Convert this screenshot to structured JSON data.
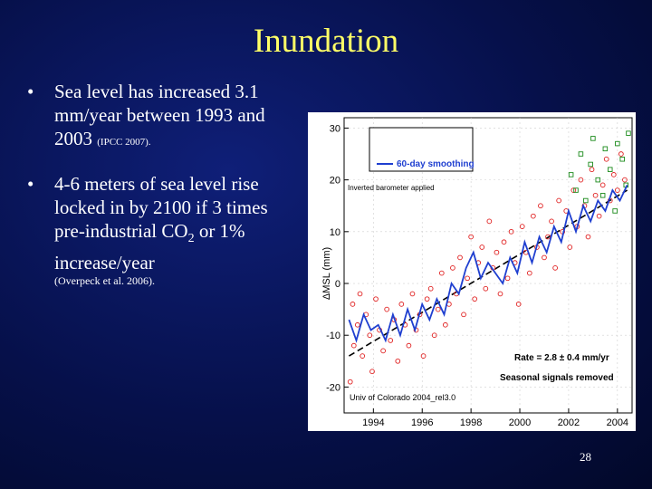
{
  "slide": {
    "title": "Inundation",
    "page_number": "28",
    "bullets": [
      {
        "text": "Sea level has increased 3.1 mm/year between 1993 and 2003",
        "citation": "(IPCC 2007)."
      },
      {
        "text_before": "4-6 meters of sea level rise locked in by 2100 if 3 times pre-industrial CO",
        "subscript": "2",
        "text_after": " or 1% increase/year",
        "citation": "(Overpeck et al. 2006)."
      }
    ]
  },
  "chart_data": {
    "type": "scatter",
    "ylabel": "ΔMSL (mm)",
    "x_ticks": [
      "1994",
      "1996",
      "1998",
      "2000",
      "2002",
      "2004"
    ],
    "y_ticks": [
      "-20",
      "-10",
      "0",
      "10",
      "20",
      "30"
    ],
    "xlim": [
      1992.8,
      2004.6
    ],
    "ylim": [
      -25,
      32
    ],
    "legend": {
      "label": "60-day smoothing",
      "note": "Inverted barometer applied",
      "placement": "top-left"
    },
    "annotations": [
      "Rate = 2.8 ± 0.4 mm/yr",
      "Seasonal signals removed",
      "Univ of Colorado 2004_rel3.0"
    ],
    "trend": {
      "slope_mm_per_yr": 2.8,
      "start": [
        1993.0,
        -14
      ],
      "end": [
        2004.4,
        18
      ]
    },
    "series": [
      {
        "name": "60-day smoothing",
        "style": "line",
        "color": "#1f3fd0",
        "x": [
          1993.0,
          1993.3,
          1993.6,
          1993.9,
          1994.2,
          1994.5,
          1994.8,
          1995.1,
          1995.4,
          1995.7,
          1996.0,
          1996.3,
          1996.6,
          1996.9,
          1997.2,
          1997.5,
          1997.8,
          1998.1,
          1998.4,
          1998.7,
          1999.0,
          1999.3,
          1999.6,
          1999.9,
          2000.2,
          2000.5,
          2000.8,
          2001.1,
          2001.4,
          2001.7,
          2002.0,
          2002.3,
          2002.6,
          2002.9,
          2003.2,
          2003.5,
          2003.8,
          2004.1,
          2004.4
        ],
        "values": [
          -7,
          -11,
          -6,
          -9,
          -8,
          -11,
          -6,
          -10,
          -5,
          -9,
          -4,
          -7,
          -3,
          -6,
          0,
          -2,
          3,
          6,
          1,
          4,
          2,
          0,
          5,
          2,
          8,
          4,
          9,
          6,
          11,
          8,
          14,
          10,
          15,
          12,
          16,
          14,
          18,
          16,
          19
        ]
      },
      {
        "name": "",
        "style": "circle",
        "color": "#e02020",
        "x": [
          1993.05,
          1993.15,
          1993.2,
          1993.35,
          1993.45,
          1993.55,
          1993.7,
          1993.85,
          1993.95,
          1994.1,
          1994.25,
          1994.4,
          1994.55,
          1994.7,
          1994.85,
          1995.0,
          1995.15,
          1995.3,
          1995.45,
          1995.6,
          1995.75,
          1995.9,
          1996.05,
          1996.2,
          1996.35,
          1996.5,
          1996.65,
          1996.8,
          1996.95,
          1997.1,
          1997.25,
          1997.4,
          1997.55,
          1997.7,
          1997.85,
          1998.0,
          1998.15,
          1998.3,
          1998.45,
          1998.6,
          1998.75,
          1998.9,
          1999.05,
          1999.2,
          1999.35,
          1999.5,
          1999.65,
          1999.8,
          1999.95,
          2000.1,
          2000.25,
          2000.4,
          2000.55,
          2000.7,
          2000.85,
          2001.0,
          2001.15,
          2001.3,
          2001.45,
          2001.6,
          2001.75,
          2001.9,
          2002.05,
          2002.2,
          2002.35,
          2002.5,
          2002.65,
          2002.8,
          2002.95,
          2003.1,
          2003.25,
          2003.4,
          2003.55,
          2003.7,
          2003.85,
          2004.0,
          2004.15,
          2004.3
        ],
        "values": [
          -19,
          -4,
          -12,
          -8,
          -2,
          -14,
          -6,
          -10,
          -17,
          -3,
          -9,
          -13,
          -5,
          -11,
          -7,
          -15,
          -4,
          -8,
          -12,
          -2,
          -9,
          -6,
          -14,
          -3,
          -1,
          -10,
          -5,
          2,
          -8,
          -4,
          3,
          -2,
          5,
          -6,
          1,
          9,
          -3,
          4,
          7,
          -1,
          12,
          3,
          6,
          -2,
          8,
          1,
          10,
          4,
          -4,
          11,
          6,
          2,
          13,
          7,
          15,
          5,
          9,
          12,
          3,
          16,
          10,
          14,
          7,
          18,
          11,
          20,
          15,
          9,
          22,
          17,
          13,
          19,
          24,
          16,
          21,
          18,
          25,
          20
        ]
      },
      {
        "name": "",
        "style": "square",
        "color": "#1a8a1a",
        "x": [
          2002.1,
          2002.3,
          2002.5,
          2002.7,
          2002.9,
          2003.0,
          2003.2,
          2003.4,
          2003.5,
          2003.7,
          2003.9,
          2004.0,
          2004.2,
          2004.35,
          2004.45
        ],
        "values": [
          21,
          18,
          25,
          16,
          23,
          28,
          20,
          17,
          26,
          22,
          14,
          27,
          24,
          19,
          29
        ]
      }
    ]
  }
}
